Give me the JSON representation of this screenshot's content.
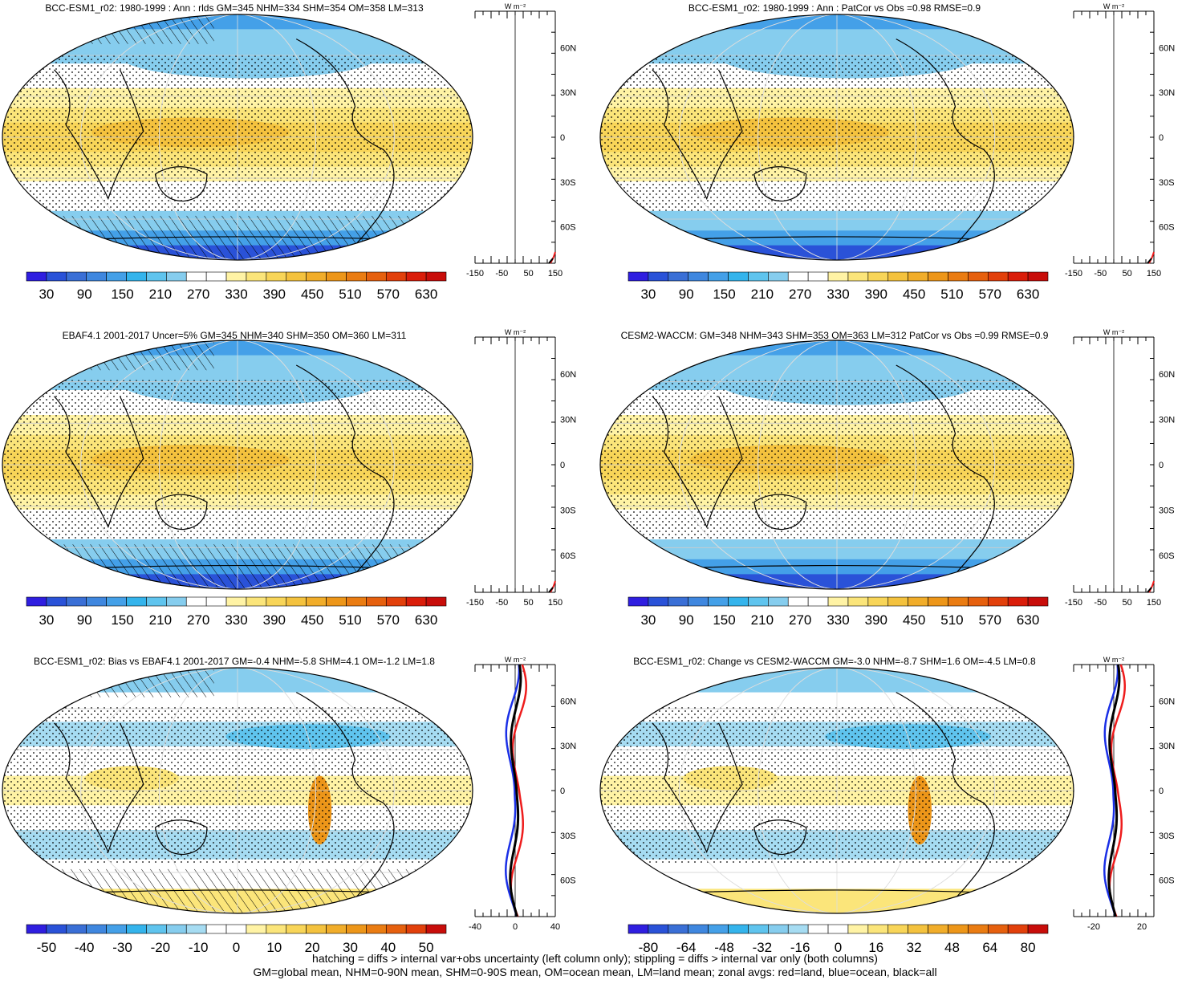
{
  "chart_data": [
    {
      "type": "heatmap",
      "title": "BCC-ESM1_r02: 1980-1999 : Ann : rlds GM=345 NHM=334 SHM=354 OM=358 LM=313",
      "colorbar_labels": [
        "30",
        "90",
        "150",
        "210",
        "270",
        "330",
        "390",
        "450",
        "510",
        "570",
        "630"
      ],
      "colorbar_scale": "abs",
      "zonal_xticks": [
        "-150",
        "-50",
        "50",
        "150"
      ],
      "zonal_unit": "W m⁻²",
      "lat_labels": [
        "60N",
        "30N",
        "0",
        "30S",
        "60S"
      ],
      "hatching": true,
      "zonal_curves": false,
      "warm_caps": false
    },
    {
      "type": "heatmap",
      "title": "BCC-ESM1_r02: 1980-1999 : Ann : PatCor vs Obs =0.98 RMSE=0.9",
      "colorbar_labels": [
        "30",
        "90",
        "150",
        "210",
        "270",
        "330",
        "390",
        "450",
        "510",
        "570",
        "630"
      ],
      "colorbar_scale": "abs",
      "zonal_xticks": [
        "-150",
        "-50",
        "50",
        "150"
      ],
      "zonal_unit": "W m⁻²",
      "lat_labels": [
        "60N",
        "30N",
        "0",
        "30S",
        "60S"
      ],
      "hatching": false,
      "zonal_curves": false,
      "warm_caps": false
    },
    {
      "type": "heatmap",
      "title": "EBAF4.1 2001-2017 Uncer=5% GM=345 NHM=340 SHM=350 OM=360 LM=311",
      "colorbar_labels": [
        "30",
        "90",
        "150",
        "210",
        "270",
        "330",
        "390",
        "450",
        "510",
        "570",
        "630"
      ],
      "colorbar_scale": "abs",
      "zonal_xticks": [
        "-150",
        "-50",
        "50",
        "150"
      ],
      "zonal_unit": "W m⁻²",
      "lat_labels": [
        "60N",
        "30N",
        "0",
        "30S",
        "60S"
      ],
      "hatching": true,
      "zonal_curves": false,
      "warm_caps": false
    },
    {
      "type": "heatmap",
      "title": "CESM2-WACCM: GM=348 NHM=343 SHM=353 OM=363 LM=312 PatCor vs Obs =0.99 RMSE=0.9",
      "colorbar_labels": [
        "30",
        "90",
        "150",
        "210",
        "270",
        "330",
        "390",
        "450",
        "510",
        "570",
        "630"
      ],
      "colorbar_scale": "abs",
      "zonal_xticks": [
        "-150",
        "-50",
        "50",
        "150"
      ],
      "zonal_unit": "W m⁻²",
      "lat_labels": [
        "60N",
        "30N",
        "0",
        "30S",
        "60S"
      ],
      "hatching": false,
      "zonal_curves": false,
      "warm_caps": false
    },
    {
      "type": "heatmap",
      "title": "BCC-ESM1_r02: Bias vs EBAF4.1 2001-2017 GM=-0.4 NHM=-5.8 SHM=4.1 OM=-1.2 LM=1.8",
      "colorbar_labels": [
        "-50",
        "-40",
        "-30",
        "-20",
        "-10",
        "0",
        "10",
        "20",
        "30",
        "40",
        "50"
      ],
      "colorbar_scale": "diff",
      "zonal_xticks": [
        "-40",
        "0",
        "40"
      ],
      "zonal_unit": "W m⁻²",
      "lat_labels": [
        "60N",
        "30N",
        "0",
        "30S",
        "60S"
      ],
      "hatching": true,
      "zonal_curves": true,
      "warm_caps": true
    },
    {
      "type": "heatmap",
      "title": "BCC-ESM1_r02: Change vs CESM2-WACCM GM=-3.0 NHM=-8.7 SHM=1.6 OM=-4.5 LM=0.8",
      "colorbar_labels": [
        "-80",
        "-64",
        "-48",
        "-32",
        "-16",
        "0",
        "16",
        "32",
        "48",
        "64",
        "80"
      ],
      "colorbar_scale": "diff",
      "zonal_xticks": [
        "-20",
        "20"
      ],
      "zonal_unit": "W m⁻²",
      "lat_labels": [
        "60N",
        "30N",
        "0",
        "30S",
        "60S"
      ],
      "hatching": false,
      "zonal_curves": true,
      "warm_caps": true
    }
  ],
  "footer": {
    "line1": "hatching = diffs > internal var+obs uncertainty (left column only); stippling = diffs > internal var only (both columns)",
    "line2": "GM=global mean, NHM=0-90N mean, SHM=0-90S mean, OM=ocean mean, LM=land mean; zonal avgs: red=land, blue=ocean, black=all"
  },
  "colors": {
    "abs_scale": [
      "#2f1ee0",
      "#2a52d8",
      "#3a6fd6",
      "#3f87df",
      "#44a0e8",
      "#34b4ec",
      "#5fc4ee",
      "#86cdee",
      "#ffffff",
      "#ffffff",
      "#fff3a5",
      "#fbe57a",
      "#f8d558",
      "#f4c23e",
      "#f1ad2a",
      "#ed9619",
      "#ea7c12",
      "#e6600e",
      "#e2400b",
      "#da1d0a",
      "#c80d0a"
    ],
    "diff_scale": [
      "#2f1ee0",
      "#2a52d8",
      "#3a6fd6",
      "#3f87df",
      "#44a0e8",
      "#34b4ec",
      "#5fc4ee",
      "#86cdee",
      "#a6dcf2",
      "#ffffff",
      "#ffffff",
      "#fff3a5",
      "#fbe57a",
      "#f8d558",
      "#f4c23e",
      "#f1ad2a",
      "#ed9619",
      "#ea7c12",
      "#e6600e",
      "#e2400b",
      "#c80d0a"
    ],
    "land": "#ee1c1c",
    "ocean": "#1a2fe6",
    "all": "#000000"
  }
}
